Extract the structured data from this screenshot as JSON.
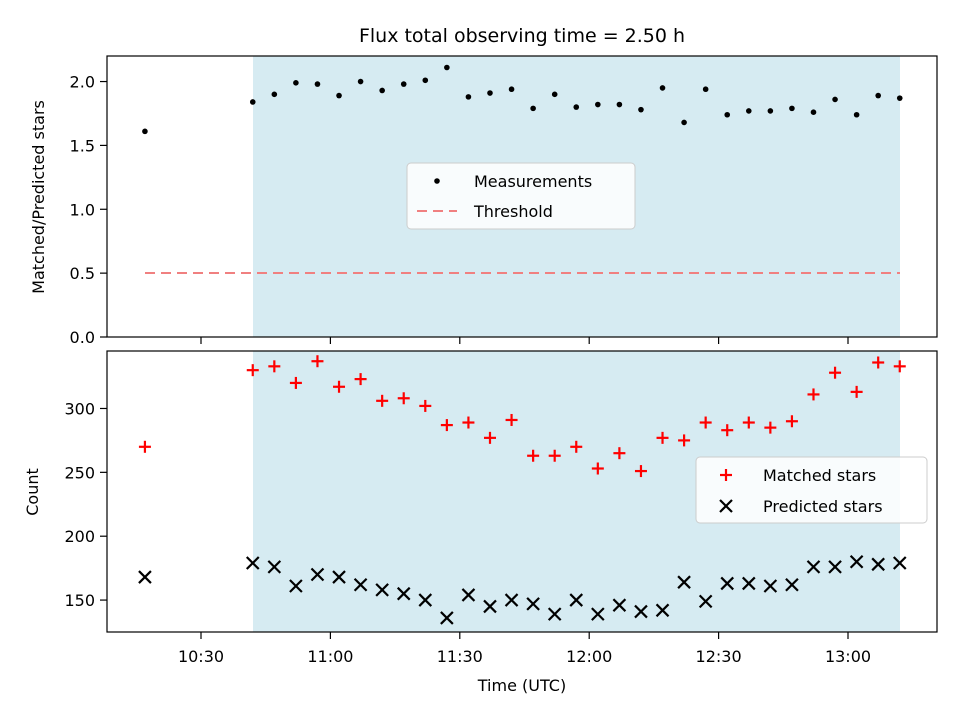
{
  "chart_data": {
    "type": "scatter",
    "title": "Flux total observing time = 2.50 h",
    "xlabel": "Time (UTC)",
    "x_ticks": [
      "10:30",
      "11:00",
      "11:30",
      "12:00",
      "12:30",
      "13:00"
    ],
    "x_range_minutes": [
      10.3,
      13.2
    ],
    "shaded_span": [
      "10:42",
      "13:12"
    ],
    "times": [
      "10:17",
      "10:42",
      "10:47",
      "10:52",
      "10:57",
      "11:02",
      "11:07",
      "11:12",
      "11:17",
      "11:22",
      "11:27",
      "11:32",
      "11:37",
      "11:42",
      "11:47",
      "11:52",
      "11:57",
      "12:02",
      "12:07",
      "12:12",
      "12:17",
      "12:22",
      "12:27",
      "12:32",
      "12:37",
      "12:42",
      "12:47",
      "12:52",
      "12:57",
      "13:02",
      "13:07",
      "13:12"
    ],
    "panels": [
      {
        "ylabel": "Matched/Predicted stars",
        "ylim": [
          0,
          2.2
        ],
        "y_ticks": [
          "0.0",
          "0.5",
          "1.0",
          "1.5",
          "2.0"
        ],
        "legend_position": "center",
        "series": [
          {
            "name": "Measurements",
            "marker": "dot",
            "color": "#000000",
            "values": [
              1.61,
              1.84,
              1.9,
              1.99,
              1.98,
              1.89,
              2.0,
              1.93,
              1.98,
              2.01,
              2.11,
              1.88,
              1.91,
              1.94,
              1.79,
              1.9,
              1.8,
              1.82,
              1.82,
              1.78,
              1.95,
              1.68,
              1.94,
              1.74,
              1.77,
              1.77,
              1.79,
              1.76,
              1.86,
              1.74,
              1.89,
              1.87
            ]
          },
          {
            "name": "Threshold",
            "marker": "dashed-line",
            "color": "#f08080",
            "value": 0.5
          }
        ]
      },
      {
        "ylabel": "Count",
        "ylim": [
          125,
          345
        ],
        "y_ticks": [
          "150",
          "200",
          "250",
          "300"
        ],
        "legend_position": "center-right",
        "series": [
          {
            "name": "Matched stars",
            "marker": "plus",
            "color": "#ff0000",
            "values": [
              270,
              330,
              333,
              320,
              337,
              317,
              323,
              306,
              308,
              302,
              287,
              289,
              277,
              291,
              263,
              263,
              270,
              253,
              265,
              251,
              277,
              275,
              289,
              283,
              289,
              285,
              290,
              311,
              328,
              313,
              336,
              333
            ]
          },
          {
            "name": "Predicted stars",
            "marker": "x",
            "color": "#000000",
            "values": [
              168,
              179,
              176,
              161,
              170,
              168,
              162,
              158,
              155,
              150,
              136,
              154,
              145,
              150,
              147,
              139,
              150,
              139,
              146,
              141,
              142,
              164,
              149,
              163,
              163,
              161,
              162,
              176,
              176,
              180,
              178,
              179
            ]
          }
        ]
      }
    ]
  }
}
